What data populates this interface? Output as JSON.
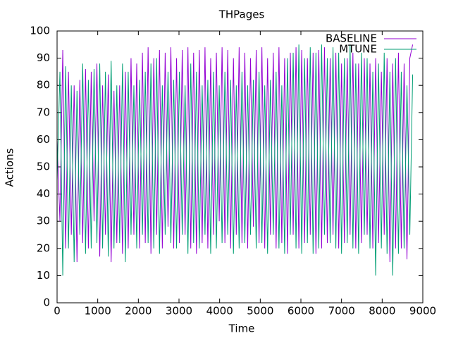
{
  "chart_data": {
    "type": "line",
    "title": "THPages",
    "x_label": "Time",
    "y_label": "Actions",
    "xlim": [
      0,
      9000
    ],
    "ylim": [
      0,
      100
    ],
    "xticks": [
      0,
      1000,
      2000,
      3000,
      4000,
      5000,
      6000,
      7000,
      8000,
      9000
    ],
    "yticks": [
      0,
      10,
      20,
      30,
      40,
      50,
      60,
      70,
      80,
      90,
      100
    ],
    "legend_position": "top-right",
    "x": [
      0,
      70,
      140,
      210,
      280,
      350,
      420,
      490,
      560,
      630,
      700,
      770,
      840,
      910,
      980,
      1050,
      1120,
      1190,
      1260,
      1330,
      1400,
      1470,
      1540,
      1610,
      1680,
      1750,
      1820,
      1890,
      1960,
      2030,
      2100,
      2170,
      2240,
      2310,
      2380,
      2450,
      2520,
      2590,
      2660,
      2730,
      2800,
      2870,
      2940,
      3010,
      3080,
      3150,
      3220,
      3290,
      3360,
      3430,
      3500,
      3570,
      3640,
      3710,
      3780,
      3850,
      3920,
      3990,
      4060,
      4130,
      4200,
      4270,
      4340,
      4410,
      4480,
      4550,
      4620,
      4690,
      4760,
      4830,
      4900,
      4970,
      5040,
      5110,
      5180,
      5250,
      5320,
      5390,
      5460,
      5530,
      5600,
      5670,
      5740,
      5810,
      5880,
      5950,
      6020,
      6090,
      6160,
      6230,
      6300,
      6370,
      6440,
      6510,
      6580,
      6650,
      6720,
      6790,
      6860,
      6930,
      7000,
      7070,
      7140,
      7210,
      7280,
      7350,
      7420,
      7490,
      7560,
      7630,
      7700,
      7770,
      7840,
      7910,
      7980,
      8050,
      8120,
      8190,
      8260,
      8330,
      8400,
      8470,
      8540,
      8610,
      8680,
      8750
    ],
    "series": [
      {
        "name": "BASELINE",
        "color": "#9400d3",
        "values": [
          60,
          30,
          93,
          20,
          85,
          25,
          80,
          15,
          82,
          22,
          86,
          20,
          85,
          30,
          88,
          17,
          80,
          25,
          84,
          15,
          78,
          22,
          80,
          18,
          85,
          20,
          90,
          25,
          88,
          20,
          92,
          22,
          94,
          18,
          90,
          25,
          93,
          20,
          92,
          28,
          94,
          20,
          90,
          22,
          93,
          25,
          94,
          20,
          92,
          18,
          93,
          22,
          94,
          20,
          90,
          25,
          92,
          30,
          94,
          22,
          93,
          20,
          90,
          25,
          94,
          22,
          92,
          20,
          90,
          28,
          93,
          22,
          94,
          20,
          90,
          25,
          92,
          20,
          94,
          22,
          90,
          18,
          92,
          25,
          94,
          20,
          93,
          22,
          90,
          25,
          92,
          18,
          93,
          20,
          94,
          22,
          90,
          25,
          92,
          20,
          88,
          22,
          90,
          25,
          92,
          20,
          88,
          22,
          90,
          25,
          88,
          20,
          90,
          22,
          85,
          25,
          90,
          15,
          88,
          20,
          92,
          20,
          88,
          16,
          90,
          95
        ]
      },
      {
        "name": "MTUNE",
        "color": "#009e73",
        "values": [
          45,
          85,
          10,
          87,
          20,
          80,
          15,
          78,
          25,
          88,
          18,
          82,
          20,
          86,
          22,
          88,
          20,
          85,
          17,
          89,
          20,
          80,
          22,
          88,
          15,
          85,
          25,
          80,
          20,
          82,
          25,
          85,
          22,
          88,
          20,
          90,
          18,
          80,
          25,
          85,
          22,
          82,
          20,
          85,
          25,
          80,
          18,
          88,
          22,
          85,
          20,
          80,
          25,
          82,
          18,
          85,
          20,
          80,
          22,
          85,
          25,
          82,
          18,
          80,
          20,
          85,
          22,
          80,
          25,
          82,
          20,
          85,
          22,
          80,
          18,
          82,
          25,
          85,
          20,
          80,
          18,
          90,
          25,
          92,
          20,
          95,
          18,
          90,
          22,
          94,
          18,
          92,
          20,
          95,
          25,
          90,
          22,
          94,
          20,
          92,
          18,
          90,
          22,
          95,
          20,
          88,
          18,
          92,
          25,
          90,
          20,
          85,
          10,
          88,
          20,
          92,
          18,
          85,
          10,
          90,
          18,
          85,
          20,
          80,
          25,
          84
        ]
      }
    ]
  }
}
